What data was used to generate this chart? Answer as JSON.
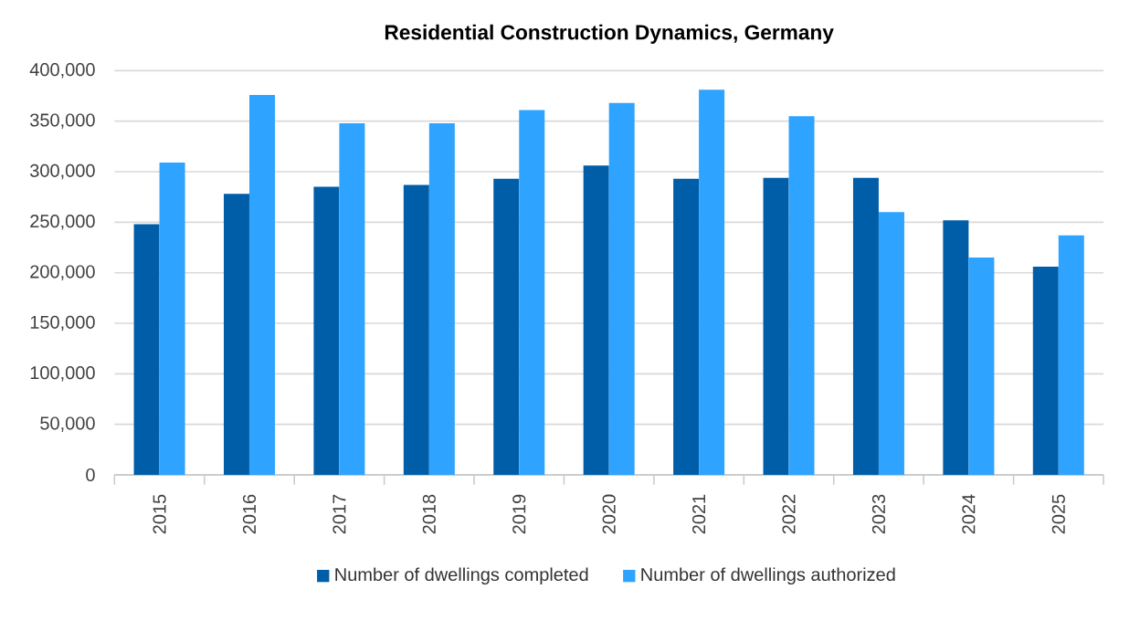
{
  "chart_data": {
    "type": "bar",
    "title": "Residential Construction Dynamics, Germany",
    "categories": [
      "2015",
      "2016",
      "2017",
      "2018",
      "2019",
      "2020",
      "2021",
      "2022",
      "2023",
      "2024",
      "2025"
    ],
    "series": [
      {
        "name": "Number of dwellings completed",
        "color": "#005ea8",
        "values": [
          248000,
          278000,
          285000,
          287000,
          293000,
          306000,
          293000,
          294000,
          294000,
          252000,
          206000
        ]
      },
      {
        "name": "Number of dwellings authorized",
        "color": "#2ea3ff",
        "values": [
          309000,
          376000,
          348000,
          348000,
          361000,
          368000,
          381000,
          355000,
          260000,
          215000,
          237000
        ]
      }
    ],
    "ylim": [
      0,
      400000
    ],
    "yticks": [
      {
        "value": 0,
        "label": "0"
      },
      {
        "value": 50000,
        "label": "50,000"
      },
      {
        "value": 100000,
        "label": "100,000"
      },
      {
        "value": 150000,
        "label": "150,000"
      },
      {
        "value": 200000,
        "label": "200,000"
      },
      {
        "value": 250000,
        "label": "250,000"
      },
      {
        "value": 300000,
        "label": "300,000"
      },
      {
        "value": 350000,
        "label": "350,000"
      },
      {
        "value": 400000,
        "label": "400,000"
      }
    ],
    "grid": "y",
    "legend": "bottom"
  }
}
